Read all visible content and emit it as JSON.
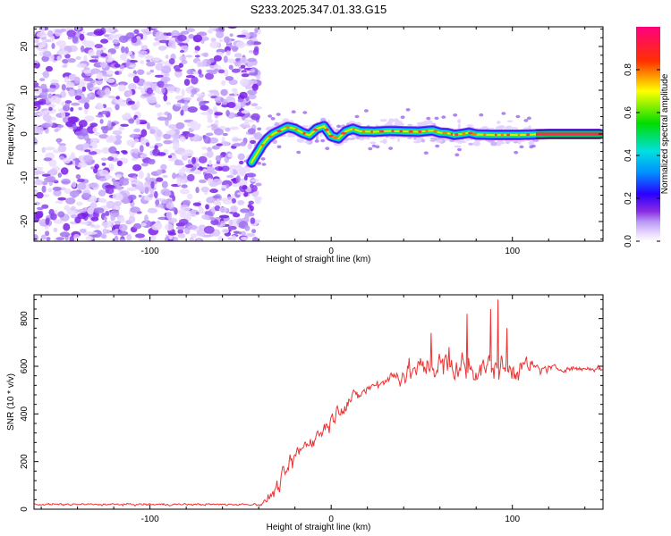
{
  "title": "S233.2025.347.01.33.G15",
  "chart_data": [
    {
      "type": "heatmap",
      "title": "S233.2025.347.01.33.G15",
      "xlabel": "Height of straight line (km)",
      "ylabel": "Frequency (Hz)",
      "xlim": [
        -164,
        150
      ],
      "ylim": [
        -24.5,
        24.5
      ],
      "x_ticks": [
        -100,
        0,
        100
      ],
      "y_ticks": [
        -20,
        -10,
        0,
        10,
        20
      ],
      "noise_region_x": [
        -164,
        -40
      ],
      "ridge": {
        "x": [
          -44,
          -41,
          -38,
          -35,
          -32,
          -28,
          -24,
          -20,
          -16,
          -12,
          -8,
          -4,
          0,
          4,
          8,
          12,
          16,
          24,
          32,
          40,
          48,
          56,
          60,
          64,
          68,
          72,
          76,
          80,
          88,
          96,
          104,
          112,
          120,
          130,
          140,
          148
        ],
        "y": [
          -6.5,
          -4.5,
          -2.5,
          -1.0,
          0.0,
          0.8,
          1.6,
          1.2,
          0.3,
          -0.3,
          1.2,
          1.8,
          -0.5,
          -1.0,
          0.6,
          1.2,
          0.6,
          0.5,
          0.7,
          0.6,
          0.5,
          0.8,
          0.3,
          0.2,
          -0.2,
          0.0,
          0.3,
          -0.1,
          -0.2,
          -0.2,
          -0.2,
          -0.1,
          0.0,
          0.0,
          0.0,
          0.0
        ]
      },
      "colorbar": {
        "label": "Normalized spectral amplitude",
        "ticks": [
          "0.0",
          "0.2",
          "0.4",
          "0.6",
          "0.8"
        ],
        "min": 0,
        "max": 1
      }
    },
    {
      "type": "line",
      "xlabel": "Height of straight line (km)",
      "ylabel": "SNR (10 * v/v)",
      "xlim": [
        -164,
        150
      ],
      "ylim": [
        0,
        900
      ],
      "x_ticks": [
        -100,
        0,
        100
      ],
      "y_ticks": [
        0,
        200,
        400,
        600,
        800
      ],
      "color": "#ee3333",
      "series": [
        {
          "name": "SNR",
          "envelope_x": [
            -164,
            -45,
            -38,
            -30,
            -22,
            -15,
            -5,
            5,
            15,
            25,
            35,
            45,
            55,
            65,
            75,
            85,
            95,
            105,
            115,
            125,
            135,
            150
          ],
          "envelope_mean": [
            20,
            20,
            22,
            90,
            200,
            270,
            330,
            430,
            480,
            530,
            560,
            580,
            600,
            600,
            590,
            600,
            590,
            600,
            590,
            590,
            590,
            590
          ],
          "envelope_spread": [
            8,
            8,
            12,
            60,
            70,
            70,
            60,
            60,
            60,
            60,
            70,
            90,
            110,
            120,
            120,
            110,
            100,
            90,
            40,
            25,
            20,
            20
          ],
          "peaks": [
            [
              55,
              740
            ],
            [
              65,
              680
            ],
            [
              75,
              820
            ],
            [
              88,
              840
            ],
            [
              92,
              880
            ],
            [
              97,
              760
            ]
          ]
        }
      ]
    }
  ]
}
